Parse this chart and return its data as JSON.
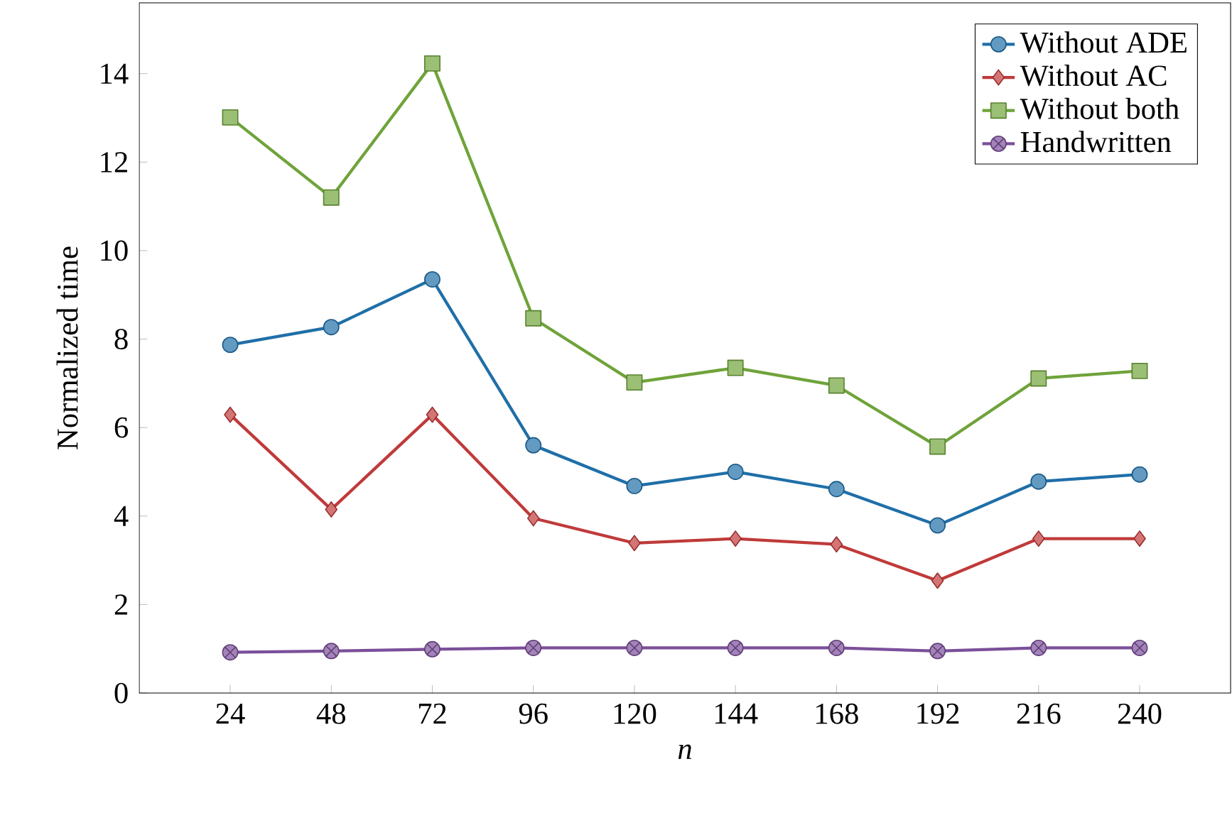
{
  "chart_data": {
    "type": "line",
    "xlabel": "*n*",
    "ylabel": "Normalized time",
    "x": [
      24,
      48,
      72,
      96,
      120,
      144,
      168,
      192,
      216,
      240
    ],
    "xlim": [
      2.4,
      261.6
    ],
    "xticks": [
      24,
      48,
      72,
      96,
      120,
      144,
      168,
      192,
      216,
      240
    ],
    "ylim": [
      0,
      15.6
    ],
    "yticks": [
      0,
      2,
      4,
      6,
      8,
      10,
      12,
      14
    ],
    "grid": false,
    "legend": "top right",
    "line_style": "solid",
    "series": [
      {
        "name": "Without ADE",
        "color": "#1f6fa8",
        "marker": "circle",
        "values": [
          7.87,
          8.27,
          9.35,
          5.6,
          4.68,
          5.0,
          4.61,
          3.79,
          4.78,
          4.94
        ]
      },
      {
        "name": "Without AC",
        "color": "#c03a3a",
        "marker": "diamond",
        "values": [
          6.29,
          4.15,
          6.29,
          3.95,
          3.39,
          3.49,
          3.36,
          2.54,
          3.49,
          3.49
        ]
      },
      {
        "name": "Without both",
        "color": "#6fa33a",
        "marker": "square",
        "values": [
          13.01,
          11.2,
          14.23,
          8.47,
          7.02,
          7.35,
          6.95,
          5.57,
          7.11,
          7.28
        ]
      },
      {
        "name": "Handwritten",
        "color": "#7b4f9a",
        "marker": "cross",
        "values": [
          0.92,
          0.95,
          0.99,
          1.02,
          1.02,
          1.02,
          1.02,
          0.95,
          1.02,
          1.02
        ]
      }
    ]
  }
}
